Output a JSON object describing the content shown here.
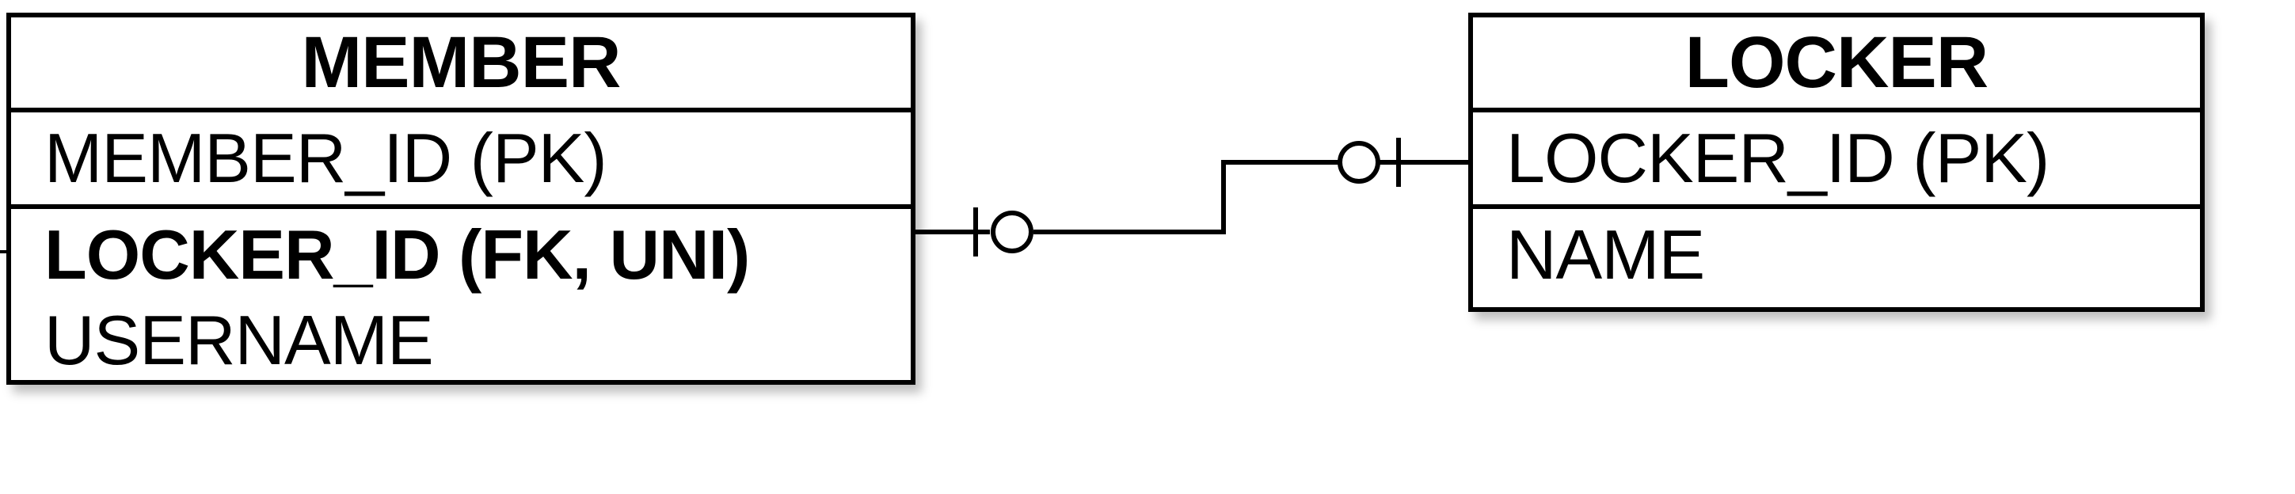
{
  "entities": {
    "member": {
      "title": "MEMBER",
      "pk_fields": [
        "MEMBER_ID (PK)"
      ],
      "fields": [
        "LOCKER_ID (FK, UNI)",
        "USERNAME"
      ]
    },
    "locker": {
      "title": "LOCKER",
      "pk_fields": [
        "LOCKER_ID (PK)"
      ],
      "fields": [
        "NAME"
      ]
    }
  },
  "relationship": {
    "from": "MEMBER.LOCKER_ID",
    "to": "LOCKER.LOCKER_ID",
    "member_end": "zero-or-one",
    "locker_end": "zero-or-one"
  }
}
